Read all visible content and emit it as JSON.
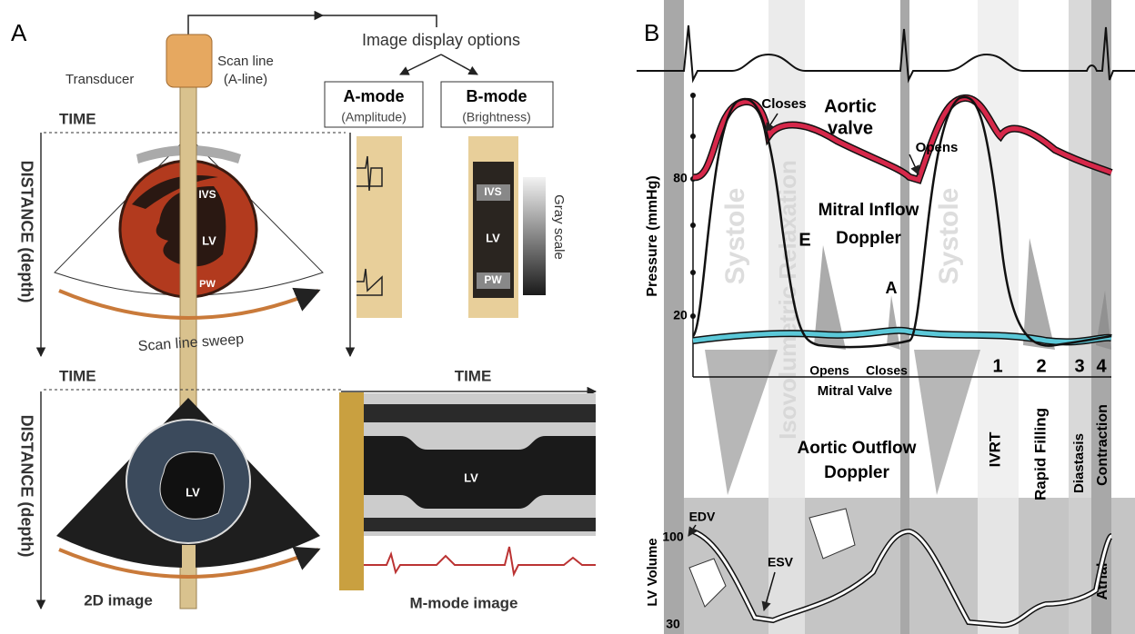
{
  "panel_a": {
    "label": "A",
    "image_display_options": "Image display options",
    "transducer": "Transducer",
    "scan_line": [
      "Scan line",
      "(A-line)"
    ],
    "a_mode": {
      "title": "A-mode",
      "subtitle": "(Amplitude)"
    },
    "b_mode": {
      "title": "B-mode",
      "subtitle": "(Brightness)"
    },
    "time_top": "TIME",
    "distance_top": "DISTANCE (depth)",
    "heart_labels": [
      "IVS",
      "LV",
      "PW"
    ],
    "b_mode_labels": [
      "IVS",
      "LV",
      "PW"
    ],
    "gray_scale": "Gray scale",
    "scan_line_sweep": "Scan line sweep",
    "time_bottom": "TIME",
    "distance_bottom": "DISTANCE (depth)",
    "image_2d_lv": "LV",
    "time_mmode": "TIME",
    "mmode_lv": "LV",
    "caption_2d": "2D image",
    "caption_mmode": "M-mode image"
  },
  "panel_b": {
    "label": "B",
    "aortic_closes": "Closes",
    "aortic_valve": [
      "Aortic",
      "valve"
    ],
    "aortic_opens": "Opens",
    "pressure_axis": {
      "title": "Pressure (mmHg)",
      "ticks": [
        80,
        20
      ]
    },
    "systole": [
      "Systole",
      "Systole"
    ],
    "isovolumetric": "Isovolumetric Relaxation",
    "mitral_inflow": [
      "Mitral Inflow",
      "Doppler"
    ],
    "e_wave": "E",
    "a_wave": "A",
    "mitral_opens": "Opens",
    "mitral_closes": "Closes",
    "mitral_valve": "Mitral Valve",
    "phase_numbers": [
      1,
      2,
      3,
      4
    ],
    "aortic_outflow": [
      "Aortic Outflow",
      "Doppler"
    ],
    "phases": [
      "IVRT",
      "Rapid Filling",
      "Diastasis",
      "Contraction"
    ],
    "atrial": "Atrial",
    "edv": "EDV",
    "esv": "ESV",
    "volume_axis": {
      "title": "LV Volume",
      "ticks": [
        100,
        30
      ]
    }
  }
}
